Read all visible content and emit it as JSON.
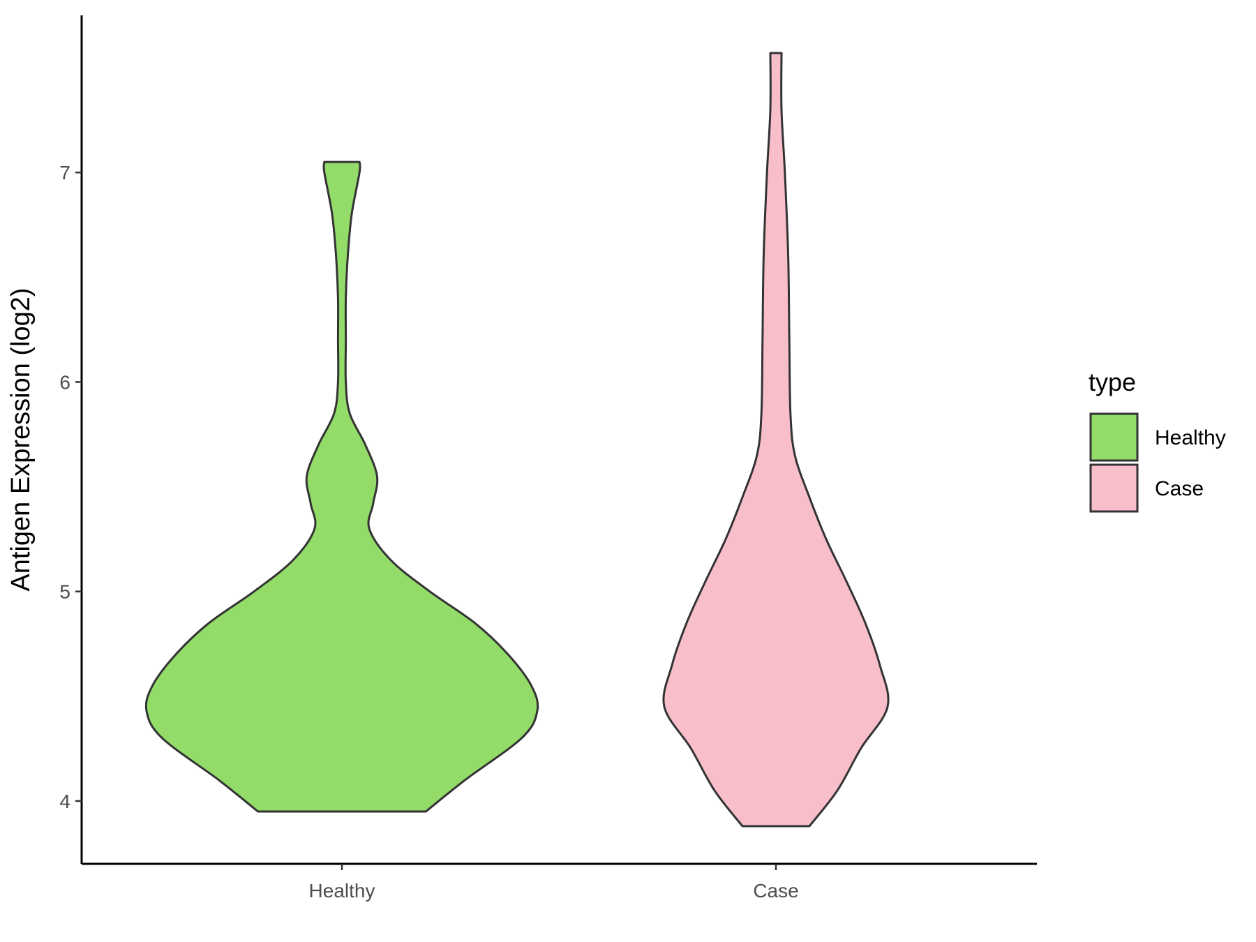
{
  "chart_data": {
    "type": "violin",
    "title": "",
    "xlabel": "",
    "ylabel": "Antigen Expression (log2)",
    "ylim": [
      3.7,
      7.75
    ],
    "yticks": [
      4,
      5,
      6,
      7
    ],
    "categories": [
      "Healthy",
      "Case"
    ],
    "legend": {
      "title": "type",
      "position": "right",
      "entries": [
        "Healthy",
        "Case"
      ]
    },
    "grid": false,
    "colors": {
      "Healthy": "#93dc6a",
      "Case": "#f8bfcb",
      "outline": "#333333"
    },
    "series": [
      {
        "name": "Healthy",
        "min": 3.95,
        "max": 7.05,
        "density_profile": [
          [
            3.95,
            0.43
          ],
          [
            4.1,
            0.63
          ],
          [
            4.3,
            0.92
          ],
          [
            4.43,
            1.0
          ],
          [
            4.55,
            0.97
          ],
          [
            4.7,
            0.85
          ],
          [
            4.85,
            0.68
          ],
          [
            5.0,
            0.45
          ],
          [
            5.15,
            0.25
          ],
          [
            5.3,
            0.14
          ],
          [
            5.42,
            0.16
          ],
          [
            5.55,
            0.18
          ],
          [
            5.7,
            0.12
          ],
          [
            5.85,
            0.04
          ],
          [
            6.0,
            0.02
          ],
          [
            6.2,
            0.02
          ],
          [
            6.4,
            0.02
          ],
          [
            6.6,
            0.03
          ],
          [
            6.8,
            0.05
          ],
          [
            7.0,
            0.09
          ],
          [
            7.05,
            0.09
          ]
        ]
      },
      {
        "name": "Case",
        "min": 3.88,
        "max": 7.57,
        "density_profile": [
          [
            3.88,
            0.3
          ],
          [
            4.05,
            0.55
          ],
          [
            4.25,
            0.76
          ],
          [
            4.45,
            1.0
          ],
          [
            4.65,
            0.93
          ],
          [
            4.85,
            0.8
          ],
          [
            5.05,
            0.63
          ],
          [
            5.25,
            0.45
          ],
          [
            5.45,
            0.3
          ],
          [
            5.65,
            0.17
          ],
          [
            5.85,
            0.13
          ],
          [
            6.2,
            0.12
          ],
          [
            6.6,
            0.11
          ],
          [
            7.0,
            0.08
          ],
          [
            7.3,
            0.05
          ],
          [
            7.57,
            0.05
          ]
        ]
      }
    ]
  }
}
